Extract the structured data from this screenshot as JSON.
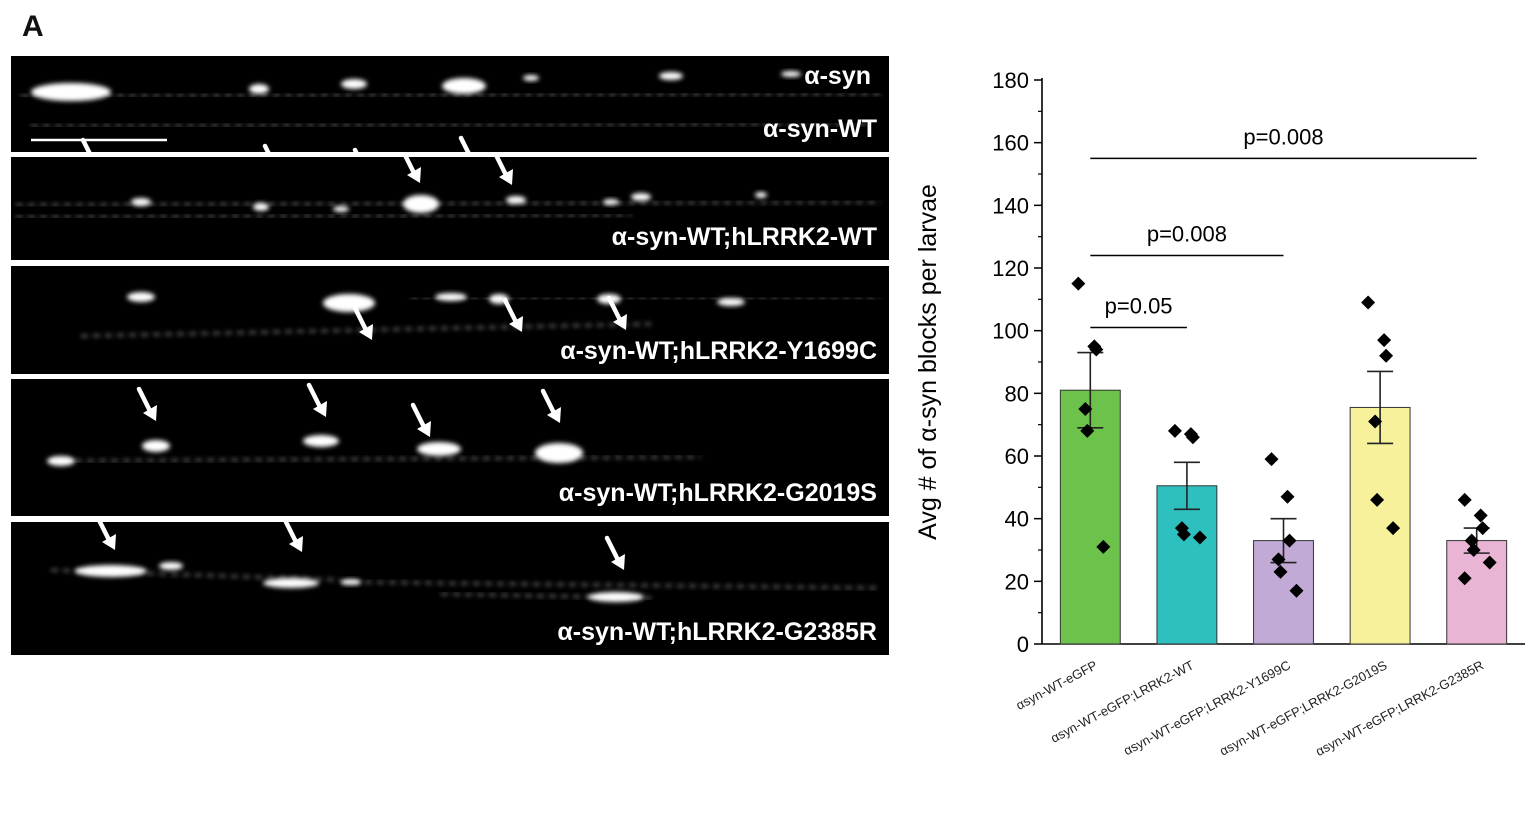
{
  "figure": {
    "panel_letter": "A",
    "micrographs": [
      {
        "label": "α-syn-WT",
        "channel": "α-syn"
      },
      {
        "label": "α-syn-WT;hLRRK2-WT"
      },
      {
        "label": "α-syn-WT;hLRRK2-Y1699C"
      },
      {
        "label": "α-syn-WT;hLRRK2-G2019S"
      },
      {
        "label": "α-syn-WT;hLRRK2-G2385R"
      }
    ]
  },
  "chart_data": {
    "type": "bar",
    "title": "",
    "xlabel": "",
    "ylabel": "Avg # of α-syn blocks per larvae",
    "ylim": [
      0,
      180
    ],
    "yticks": [
      0,
      20,
      40,
      60,
      80,
      100,
      120,
      140,
      160,
      180
    ],
    "categories": [
      "αsyn-WT-eGFP",
      "αsyn-WT-eGFP;LRRK2-WT",
      "αsyn-WT-eGFP;LRRK2-Y1699C",
      "αsyn-WT-eGFP;LRRK2-G2019S",
      "αsyn-WT-eGFP;LRRK2-G2385R"
    ],
    "values": [
      81,
      50.5,
      33,
      75.5,
      33
    ],
    "error_upper": [
      93,
      58,
      40,
      87,
      37
    ],
    "error_lower": [
      69,
      43,
      26,
      64,
      29
    ],
    "bar_colors": [
      "#6cc24a",
      "#2ebfbf",
      "#c2aad6",
      "#f6f19a",
      "#eab5d4"
    ],
    "points": [
      [
        115,
        95,
        94,
        75,
        68,
        31
      ],
      [
        68,
        67,
        66,
        37,
        35,
        34
      ],
      [
        59,
        47,
        33,
        27,
        23,
        17
      ],
      [
        109,
        97,
        92,
        71,
        46,
        37
      ],
      [
        46,
        41,
        37,
        33,
        30,
        26,
        21
      ]
    ],
    "significance": [
      {
        "from": 0,
        "to": 1,
        "y": 101,
        "label": "p=0.05"
      },
      {
        "from": 0,
        "to": 2,
        "y": 124,
        "label": "p=0.008"
      },
      {
        "from": 0,
        "to": 4,
        "y": 155,
        "label": "p=0.008"
      }
    ]
  }
}
